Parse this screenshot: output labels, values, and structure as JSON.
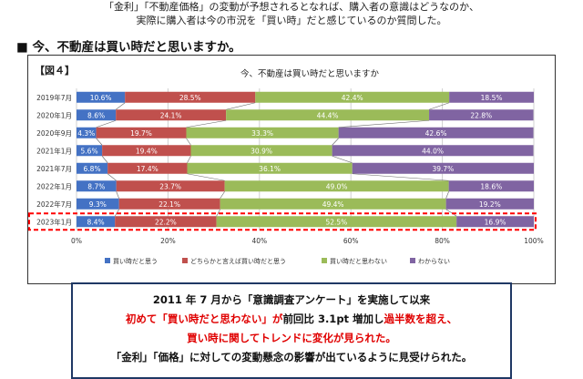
{
  "intro": {
    "line1": "「金利」「不動産価格」の変動が予想されるとなれば、購入者の意識はどうなのか、",
    "line2": "実際に購入者は今の市況を「買い時」だと感じているのか質問した。"
  },
  "heading": "■ 今、不動産は買い時だと思いますか。",
  "figure_label": "【図４】",
  "summary": {
    "line1": "2011 年 7 月から「意識調査アンケート」を実施して以来",
    "line2a": "初めて「買い時だと思わない」が",
    "line2b": "前回比 3.1pt 増加し",
    "line2c": "過半数を超え、",
    "line3": "買い時に関してトレンドに変化が見られた。",
    "line4": "「金利」「価格」に対しての変動懸念の影響が出ているように見受けられた。"
  },
  "chart_data": {
    "type": "bar",
    "orientation": "horizontal",
    "stacked": true,
    "title": "今、不動産は買い時だと思いますか",
    "categories": [
      "2019年7月",
      "2020年1月",
      "2020年9月",
      "2021年1月",
      "2021年7月",
      "2022年1月",
      "2022年7月",
      "2023年1月"
    ],
    "series": [
      {
        "name": "買い時だと思う",
        "color": "#4472c4",
        "values": [
          10.6,
          8.6,
          4.3,
          5.6,
          6.8,
          8.7,
          9.3,
          8.4
        ]
      },
      {
        "name": "どちらかと言えば買い時だと思う",
        "color": "#c0504d",
        "values": [
          28.5,
          24.1,
          19.7,
          19.4,
          17.4,
          23.7,
          22.1,
          22.2
        ]
      },
      {
        "name": "買い時だと思わない",
        "color": "#9bbb59",
        "values": [
          42.4,
          44.4,
          33.3,
          30.9,
          36.1,
          49.0,
          49.4,
          52.5
        ]
      },
      {
        "name": "わからない",
        "color": "#8064a2",
        "values": [
          18.5,
          22.8,
          42.6,
          44.0,
          39.7,
          18.6,
          19.2,
          16.9
        ]
      }
    ],
    "xlim": [
      0,
      100
    ],
    "x_ticks": [
      "0%",
      "20%",
      "40%",
      "60%",
      "80%",
      "100%"
    ],
    "grid": true,
    "legend": "bottom",
    "highlight_category": "2023年1月",
    "highlight_color": "#ff0000"
  }
}
